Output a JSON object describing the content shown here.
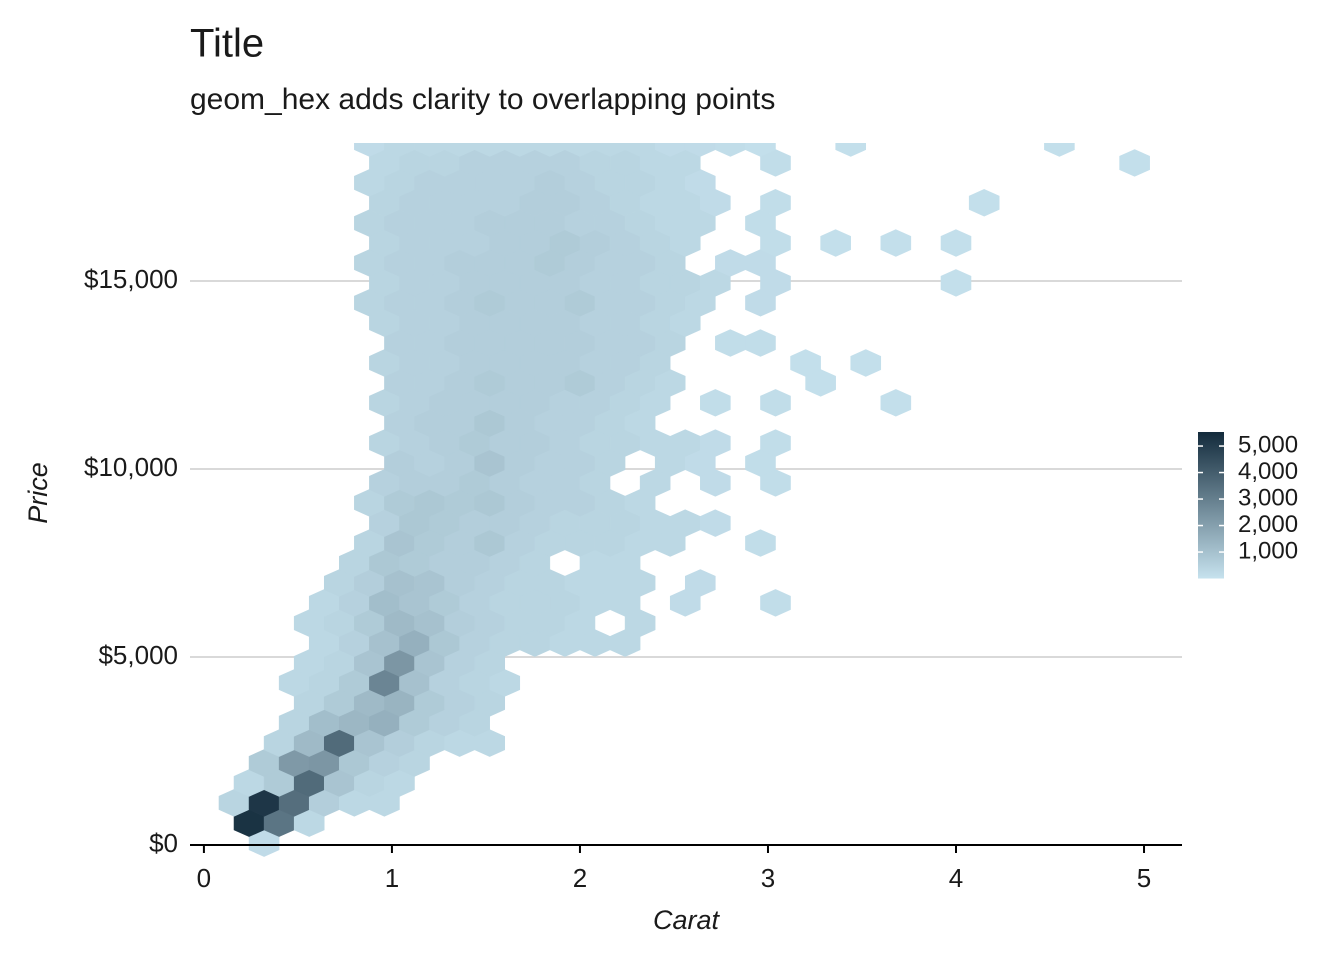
{
  "chart_data": {
    "type": "hexbin",
    "title": "Title",
    "subtitle": "geom_hex adds clarity to overlapping points",
    "x_label": "Carat",
    "y_label": "Price",
    "xlim": [
      -0.074,
      5.202
    ],
    "ylim": [
      0,
      18670
    ],
    "xticks": [
      0,
      1,
      2,
      3,
      4,
      5
    ],
    "yticks": [
      {
        "value": 0,
        "label": "$0"
      },
      {
        "value": 5000,
        "label": "$5,000"
      },
      {
        "value": 10000,
        "label": "$10,000"
      },
      {
        "value": 15000,
        "label": "$15,000"
      }
    ],
    "grid": true,
    "colorlim": [
      1,
      5530
    ],
    "colors": [
      "#c6e2ee",
      "#132b3c"
    ],
    "colorbar_ticks": [
      {
        "value": 1000,
        "label": "1,000"
      },
      {
        "value": 2000,
        "label": "2,000"
      },
      {
        "value": 3000,
        "label": "3,000"
      },
      {
        "value": 4000,
        "label": "4,000"
      },
      {
        "value": 5000,
        "label": "5,000"
      }
    ],
    "legend_position": "right",
    "rows": [
      {
        "y": 50,
        "x": [
          0.32
        ],
        "values": [
          200
        ]
      },
      {
        "y": 580,
        "x": [
          0.24,
          0.4,
          0.56
        ],
        "values": [
          5300,
          3300,
          300
        ]
      },
      {
        "y": 1120,
        "x": [
          0.16,
          0.32,
          0.48,
          0.64,
          0.8,
          0.96
        ],
        "values": [
          400,
          5200,
          3500,
          600,
          300,
          300
        ]
      },
      {
        "y": 1650,
        "x": [
          0.24,
          0.4,
          0.56,
          0.72,
          0.88,
          1.04
        ],
        "values": [
          300,
          700,
          3600,
          900,
          400,
          300
        ]
      },
      {
        "y": 2180,
        "x": [
          0.32,
          0.48,
          0.64,
          0.8,
          0.96,
          1.12
        ],
        "values": [
          700,
          2200,
          2300,
          800,
          500,
          400
        ]
      },
      {
        "y": 2710,
        "x": [
          0.4,
          0.56,
          0.72,
          0.88,
          1.04,
          1.2,
          1.36,
          1.52
        ],
        "values": [
          400,
          1200,
          3600,
          900,
          600,
          400,
          300,
          300
        ]
      },
      {
        "y": 3250,
        "x": [
          0.48,
          0.64,
          0.8,
          0.96,
          1.12,
          1.28,
          1.44
        ],
        "values": [
          400,
          1100,
          1300,
          1500,
          700,
          500,
          400
        ]
      },
      {
        "y": 3780,
        "x": [
          0.56,
          0.72,
          0.88,
          1.04,
          1.2,
          1.36,
          1.52
        ],
        "values": [
          400,
          700,
          1200,
          1400,
          700,
          500,
          400
        ]
      },
      {
        "y": 4310,
        "x": [
          0.48,
          0.64,
          0.8,
          0.96,
          1.12,
          1.28,
          1.44,
          1.6
        ],
        "values": [
          300,
          400,
          700,
          2800,
          1000,
          500,
          400,
          300
        ]
      },
      {
        "y": 4840,
        "x": [
          0.56,
          0.72,
          0.88,
          1.04,
          1.2,
          1.36,
          1.52
        ],
        "values": [
          300,
          400,
          900,
          2300,
          900,
          500,
          400
        ]
      },
      {
        "y": 5370,
        "x": [
          0.64,
          0.8,
          0.96,
          1.12,
          1.28,
          1.44,
          1.6,
          1.76,
          1.92,
          2.08,
          2.24
        ],
        "values": [
          300,
          500,
          1000,
          1500,
          800,
          500,
          400,
          400,
          300,
          300,
          300
        ]
      },
      {
        "y": 5900,
        "x": [
          0.56,
          0.72,
          0.88,
          1.04,
          1.2,
          1.36,
          1.52,
          1.68,
          1.84,
          2.0,
          2.32
        ],
        "values": [
          300,
          400,
          700,
          1200,
          1000,
          600,
          500,
          400,
          400,
          300,
          300
        ]
      },
      {
        "y": 6440,
        "x": [
          0.64,
          0.8,
          0.96,
          1.12,
          1.28,
          1.44,
          1.6,
          1.76,
          1.92,
          2.08,
          2.24,
          2.56,
          3.04
        ],
        "values": [
          300,
          500,
          1100,
          900,
          700,
          500,
          400,
          400,
          400,
          300,
          300,
          200,
          150
        ]
      },
      {
        "y": 6970,
        "x": [
          0.72,
          0.88,
          1.04,
          1.2,
          1.36,
          1.52,
          1.68,
          1.84,
          2.0,
          2.16,
          2.32,
          2.64
        ],
        "values": [
          400,
          600,
          1000,
          900,
          600,
          500,
          400,
          400,
          300,
          300,
          300,
          200
        ]
      },
      {
        "y": 7500,
        "x": [
          0.8,
          0.96,
          1.12,
          1.28,
          1.44,
          1.6,
          1.76,
          2.08,
          2.24
        ],
        "values": [
          400,
          800,
          700,
          600,
          600,
          500,
          400,
          300,
          300
        ]
      },
      {
        "y": 8030,
        "x": [
          0.88,
          1.04,
          1.2,
          1.36,
          1.52,
          1.68,
          1.84,
          2.0,
          2.16,
          2.32,
          2.48,
          2.96
        ],
        "values": [
          400,
          900,
          700,
          600,
          800,
          500,
          400,
          400,
          400,
          300,
          300,
          150
        ]
      },
      {
        "y": 8560,
        "x": [
          0.96,
          1.12,
          1.28,
          1.44,
          1.6,
          1.76,
          1.92,
          2.08,
          2.24,
          2.4,
          2.56,
          2.72
        ],
        "values": [
          500,
          800,
          700,
          600,
          600,
          500,
          400,
          400,
          400,
          300,
          300,
          200
        ]
      },
      {
        "y": 9100,
        "x": [
          0.88,
          1.04,
          1.2,
          1.36,
          1.52,
          1.68,
          1.84,
          2.0,
          2.16,
          2.32
        ],
        "values": [
          400,
          700,
          800,
          700,
          800,
          600,
          500,
          500,
          400,
          300
        ]
      },
      {
        "y": 9630,
        "x": [
          0.96,
          1.12,
          1.28,
          1.44,
          1.6,
          1.76,
          1.92,
          2.08,
          2.4,
          2.72,
          3.04
        ],
        "values": [
          500,
          600,
          600,
          700,
          600,
          500,
          500,
          400,
          300,
          200,
          150
        ]
      },
      {
        "y": 10160,
        "x": [
          1.04,
          1.2,
          1.36,
          1.52,
          1.68,
          1.84,
          2.0,
          2.16,
          2.48,
          2.64,
          2.96
        ],
        "values": [
          600,
          500,
          600,
          900,
          600,
          500,
          500,
          400,
          300,
          200,
          150
        ]
      },
      {
        "y": 10690,
        "x": [
          0.96,
          1.12,
          1.28,
          1.44,
          1.6,
          1.76,
          1.92,
          2.08,
          2.24,
          2.4,
          2.56,
          2.72,
          3.04
        ],
        "values": [
          400,
          500,
          600,
          700,
          600,
          600,
          500,
          400,
          400,
          300,
          300,
          200,
          150
        ]
      },
      {
        "y": 11220,
        "x": [
          1.04,
          1.2,
          1.36,
          1.52,
          1.68,
          1.84,
          2.0,
          2.16,
          2.32
        ],
        "values": [
          500,
          600,
          600,
          800,
          600,
          500,
          500,
          400,
          300
        ]
      },
      {
        "y": 11760,
        "x": [
          0.96,
          1.12,
          1.28,
          1.44,
          1.6,
          1.76,
          1.92,
          2.08,
          2.24,
          2.4,
          2.72,
          3.04,
          3.68
        ],
        "values": [
          400,
          500,
          600,
          600,
          600,
          600,
          500,
          500,
          400,
          300,
          150,
          150,
          100
        ]
      },
      {
        "y": 12290,
        "x": [
          1.04,
          1.2,
          1.36,
          1.52,
          1.68,
          1.84,
          2.0,
          2.16,
          2.32,
          2.48,
          3.28
        ],
        "values": [
          500,
          500,
          600,
          700,
          600,
          600,
          700,
          500,
          400,
          300,
          100
        ]
      },
      {
        "y": 12820,
        "x": [
          0.96,
          1.12,
          1.28,
          1.44,
          1.6,
          1.76,
          1.92,
          2.08,
          2.24,
          2.4,
          3.2,
          3.52
        ],
        "values": [
          400,
          500,
          500,
          600,
          600,
          600,
          600,
          500,
          500,
          400,
          100,
          100
        ]
      },
      {
        "y": 13350,
        "x": [
          1.04,
          1.2,
          1.36,
          1.52,
          1.68,
          1.84,
          2.0,
          2.16,
          2.32,
          2.48,
          2.8,
          2.96
        ],
        "values": [
          500,
          500,
          600,
          600,
          600,
          600,
          600,
          500,
          500,
          400,
          150,
          150
        ]
      },
      {
        "y": 13880,
        "x": [
          0.96,
          1.12,
          1.28,
          1.44,
          1.6,
          1.76,
          1.92,
          2.08,
          2.24,
          2.4,
          2.56
        ],
        "values": [
          400,
          500,
          500,
          600,
          600,
          600,
          600,
          500,
          500,
          400,
          300
        ]
      },
      {
        "y": 14420,
        "x": [
          0.88,
          1.04,
          1.2,
          1.36,
          1.52,
          1.68,
          1.84,
          2.0,
          2.16,
          2.32,
          2.48,
          2.64,
          2.96
        ],
        "values": [
          400,
          500,
          500,
          600,
          700,
          600,
          600,
          700,
          500,
          500,
          400,
          300,
          200
        ]
      },
      {
        "y": 14950,
        "x": [
          0.96,
          1.12,
          1.28,
          1.44,
          1.6,
          1.76,
          1.92,
          2.08,
          2.24,
          2.4,
          2.56,
          2.72,
          3.04,
          4.0
        ],
        "values": [
          400,
          500,
          500,
          600,
          600,
          600,
          600,
          500,
          500,
          400,
          400,
          300,
          200,
          100
        ]
      },
      {
        "y": 15480,
        "x": [
          0.88,
          1.04,
          1.2,
          1.36,
          1.52,
          1.68,
          1.84,
          2.0,
          2.16,
          2.32,
          2.48,
          2.8,
          2.96
        ],
        "values": [
          400,
          500,
          500,
          600,
          600,
          600,
          700,
          600,
          500,
          500,
          400,
          200,
          200
        ]
      },
      {
        "y": 16010,
        "x": [
          0.96,
          1.12,
          1.28,
          1.44,
          1.6,
          1.76,
          1.92,
          2.08,
          2.24,
          2.4,
          2.56,
          3.04,
          3.36,
          3.68,
          4.0
        ],
        "values": [
          400,
          500,
          500,
          500,
          600,
          600,
          700,
          600,
          500,
          400,
          300,
          150,
          100,
          100,
          100
        ]
      },
      {
        "y": 16540,
        "x": [
          0.88,
          1.04,
          1.2,
          1.36,
          1.52,
          1.68,
          1.84,
          2.0,
          2.16,
          2.32,
          2.48,
          2.64,
          2.96
        ],
        "values": [
          400,
          500,
          500,
          500,
          600,
          600,
          600,
          500,
          500,
          400,
          300,
          300,
          150
        ]
      },
      {
        "y": 17080,
        "x": [
          0.96,
          1.12,
          1.28,
          1.44,
          1.6,
          1.76,
          1.92,
          2.08,
          2.24,
          2.4,
          2.56,
          2.72,
          3.04,
          4.15
        ],
        "values": [
          400,
          500,
          500,
          500,
          500,
          600,
          600,
          500,
          400,
          300,
          300,
          200,
          150,
          100
        ]
      },
      {
        "y": 17610,
        "x": [
          0.88,
          1.04,
          1.2,
          1.36,
          1.52,
          1.68,
          1.84,
          2.0,
          2.16,
          2.32,
          2.48,
          2.64
        ],
        "values": [
          300,
          400,
          500,
          500,
          500,
          500,
          600,
          500,
          400,
          400,
          300,
          200
        ]
      },
      {
        "y": 18140,
        "x": [
          0.96,
          1.12,
          1.28,
          1.44,
          1.6,
          1.76,
          1.92,
          2.08,
          2.24,
          2.4,
          2.56,
          3.04,
          4.95
        ],
        "values": [
          300,
          400,
          400,
          500,
          500,
          500,
          500,
          400,
          400,
          300,
          300,
          150,
          100
        ]
      },
      {
        "y": 18670,
        "x": [
          0.88,
          1.04,
          1.2,
          1.36,
          1.52,
          1.68,
          1.84,
          2.0,
          2.16,
          2.32,
          2.48,
          2.64,
          2.8,
          2.96,
          3.44,
          4.55
        ],
        "values": [
          200,
          300,
          300,
          300,
          300,
          300,
          300,
          300,
          300,
          300,
          200,
          200,
          150,
          100,
          100,
          100
        ]
      }
    ]
  }
}
